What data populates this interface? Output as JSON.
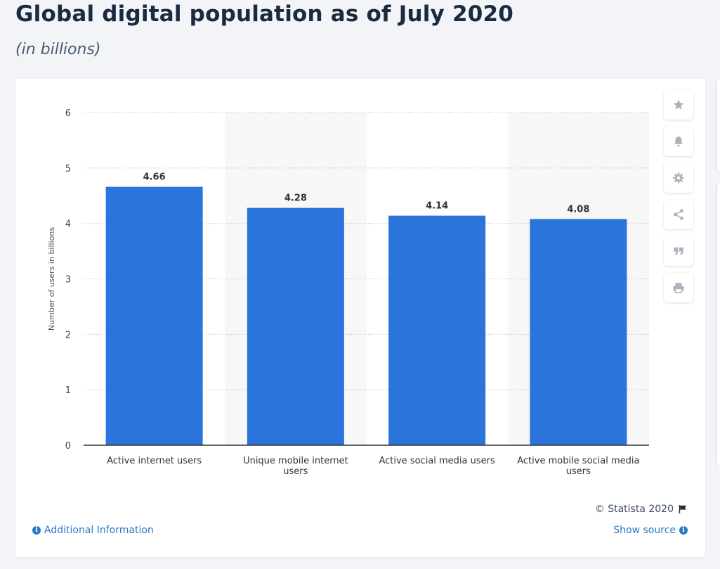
{
  "page": {
    "title": "Global digital population as of July 2020",
    "subtitle": "(in billions)"
  },
  "toolbar": {
    "buttons": [
      "star-icon",
      "bell-icon",
      "gear-icon",
      "share-icon",
      "quote-icon",
      "print-icon"
    ]
  },
  "footer": {
    "copyright": "© Statista 2020",
    "additional_info": "Additional Information",
    "show_source": "Show source"
  },
  "colors": {
    "bar": "#2a74db",
    "band": "#f7f7f8",
    "axis": "#333333",
    "grid": "#bcbcbc",
    "link": "#2a78c9"
  },
  "chart_data": {
    "type": "bar",
    "ylabel": "Number of users in billions",
    "ylim": [
      0,
      6
    ],
    "yticks": [
      0,
      1,
      2,
      3,
      4,
      5,
      6
    ],
    "grid": true,
    "categories": [
      [
        "Active internet users"
      ],
      [
        "Unique mobile internet",
        "users"
      ],
      [
        "Active social media users"
      ],
      [
        "Active mobile social media",
        "users"
      ]
    ],
    "values": [
      4.66,
      4.28,
      4.14,
      4.08
    ],
    "value_labels": [
      "4.66",
      "4.28",
      "4.14",
      "4.08"
    ]
  }
}
